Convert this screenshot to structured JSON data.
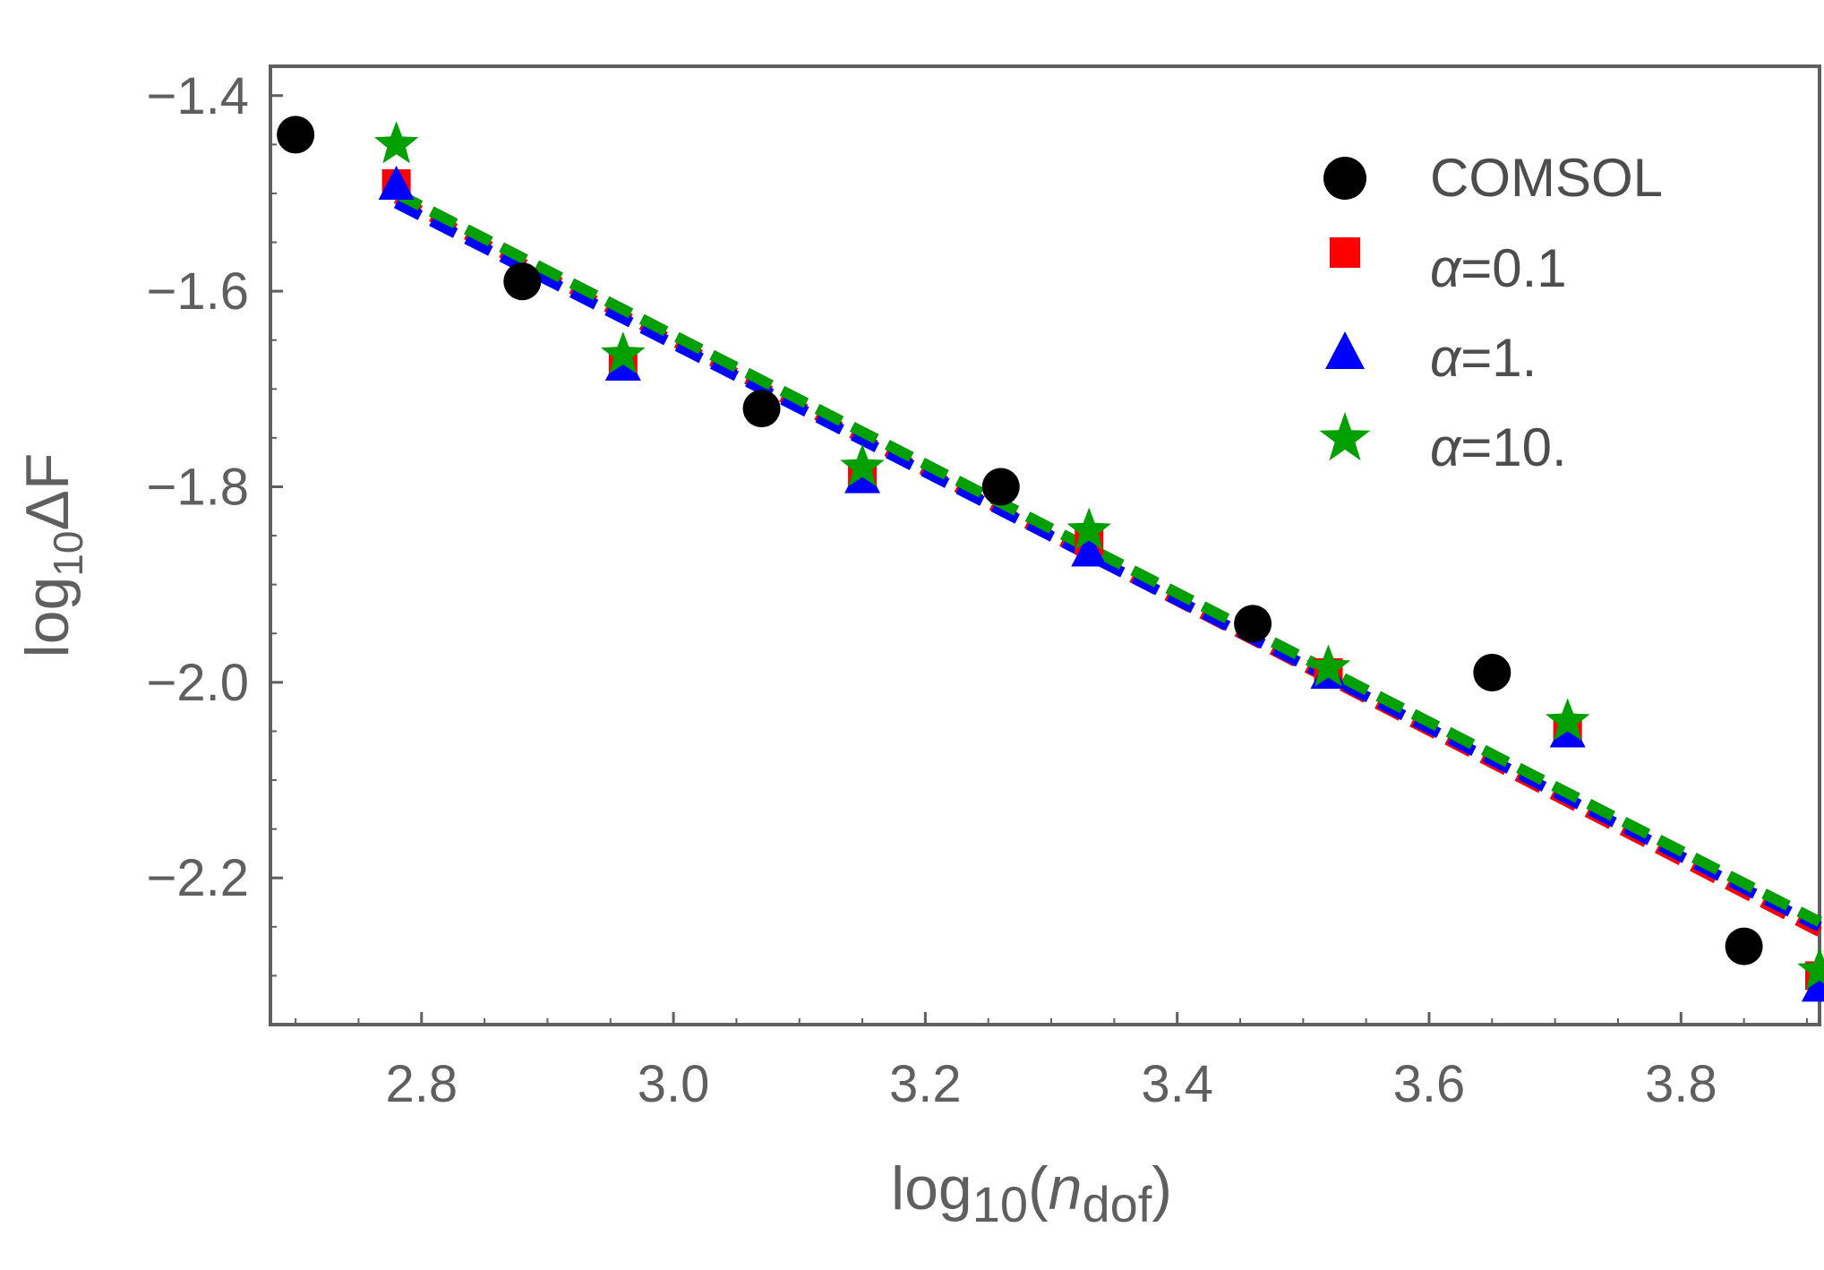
{
  "chart_data": {
    "type": "scatter",
    "title": "",
    "xlabel": {
      "prefix": "log",
      "sub": "10",
      "open": "(",
      "var": "n",
      "var_sub": "dof",
      "close": ")"
    },
    "ylabel": {
      "prefix": "log",
      "sub": "10",
      "main": "ΔF"
    },
    "xlim": [
      2.68,
      3.91
    ],
    "ylim": [
      -2.35,
      -1.37
    ],
    "x_ticks": [
      2.8,
      3.0,
      3.2,
      3.4,
      3.6,
      3.8
    ],
    "x_tick_labels": [
      "2.8",
      "3.0",
      "3.2",
      "3.4",
      "3.6",
      "3.8"
    ],
    "y_ticks": [
      -1.4,
      -1.6,
      -1.8,
      -2.0,
      -2.2
    ],
    "y_tick_labels": [
      "−1.4",
      "−1.6",
      "−1.8",
      "−2.0",
      "−2.2"
    ],
    "legend_position": "top-right",
    "series": [
      {
        "name": "COMSOL",
        "label": "COMSOL",
        "label_var": "",
        "marker": "circle",
        "color": "#000000",
        "x": [
          2.7,
          2.88,
          3.07,
          3.26,
          3.46,
          3.65,
          3.85
        ],
        "y": [
          -1.44,
          -1.59,
          -1.72,
          -1.8,
          -1.94,
          -1.99,
          -2.27
        ],
        "fit": {
          "x": [
            2.78,
            3.91
          ],
          "y": [
            -1.5,
            -2.245
          ]
        }
      },
      {
        "name": "alpha=0.1",
        "label": "=0.1",
        "label_var": "α",
        "marker": "square",
        "color": "#ff0000",
        "x": [
          2.78,
          2.96,
          3.15,
          3.33,
          3.52,
          3.71,
          3.91
        ],
        "y": [
          -1.49,
          -1.675,
          -1.79,
          -1.855,
          -1.99,
          -2.05,
          -2.3
        ],
        "fit": {
          "x": [
            2.78,
            3.91
          ],
          "y": [
            -1.505,
            -2.255
          ]
        }
      },
      {
        "name": "alpha=1.",
        "label": "=1.",
        "label_var": "α",
        "marker": "triangle",
        "color": "#0000ff",
        "x": [
          2.78,
          2.96,
          3.15,
          3.33,
          3.52,
          3.71,
          3.91
        ],
        "y": [
          -1.49,
          -1.675,
          -1.79,
          -1.865,
          -1.99,
          -2.05,
          -2.31
        ],
        "fit": {
          "x": [
            2.78,
            3.91
          ],
          "y": [
            -1.51,
            -2.25
          ]
        }
      },
      {
        "name": "alpha=10.",
        "label": "=10.",
        "label_var": "α",
        "marker": "star",
        "color": "#00a000",
        "x": [
          2.78,
          2.96,
          3.15,
          3.33,
          3.52,
          3.71,
          3.91
        ],
        "y": [
          -1.45,
          -1.665,
          -1.78,
          -1.845,
          -1.985,
          -2.04,
          -2.295
        ],
        "fit": {
          "x": [
            2.78,
            3.91
          ],
          "y": [
            -1.5,
            -2.245
          ]
        }
      }
    ]
  }
}
